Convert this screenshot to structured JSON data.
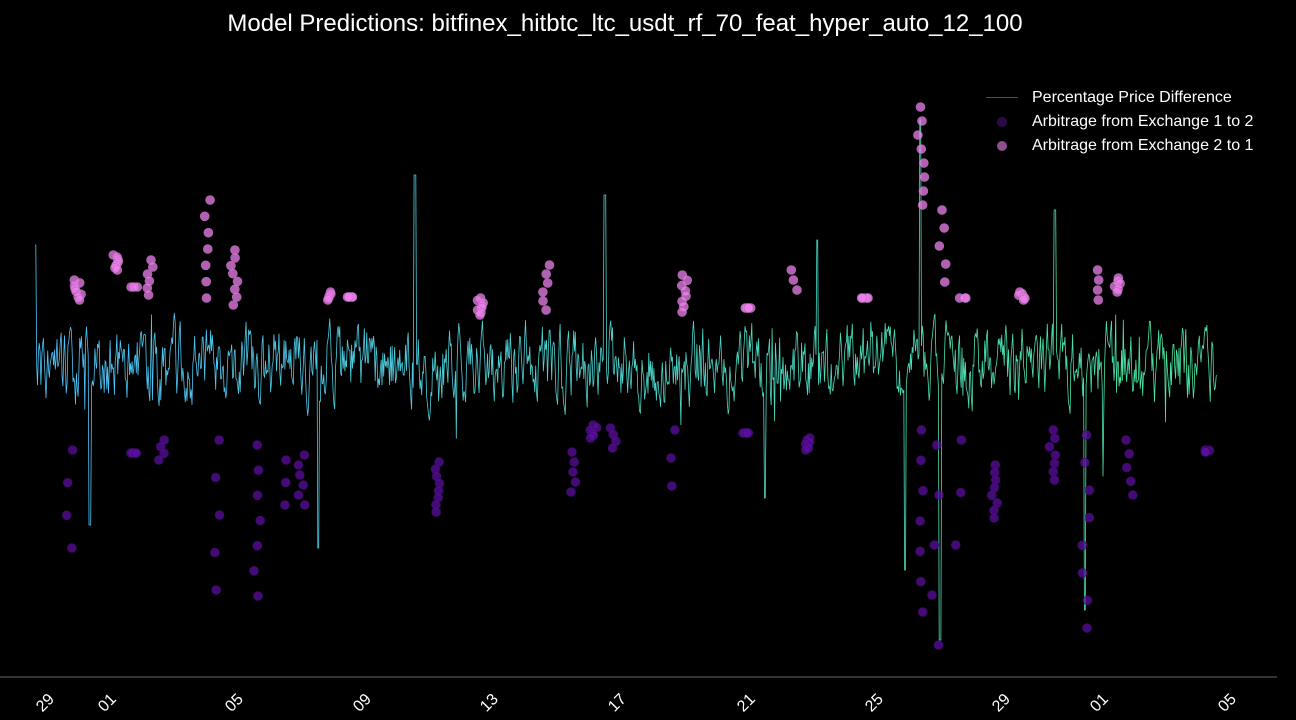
{
  "chart_data": {
    "type": "line",
    "title": "Model Predictions: bitfinex_hitbtc_ltc_usdt_rf_70_feat_hyper_auto_12_100",
    "xlabel": "",
    "ylabel": "",
    "x_tick_labels": [
      "29",
      "01",
      "05",
      "09",
      "13",
      "17",
      "21",
      "25",
      "29",
      "01",
      "05"
    ],
    "grid": false,
    "legend_position": "top-right",
    "y_axis_ticks_shown": false,
    "series": [
      {
        "name": "Percentage Price Difference",
        "kind": "line",
        "color_start": "#4fc3f7",
        "color_end": "#4be3a0"
      },
      {
        "name": "Arbitrage from Exchange 1 to 2",
        "kind": "scatter",
        "color": "#5b0f9e"
      },
      {
        "name": "Arbitrage from Exchange 2 to 1",
        "kind": "scatter",
        "color": "#ee82ee"
      }
    ],
    "note_on_values": "y values are in undisclosed units; no y-axis tick labels are printed"
  },
  "colors": {
    "background": "#000000",
    "text": "#ffffff",
    "axis": "#666666"
  }
}
